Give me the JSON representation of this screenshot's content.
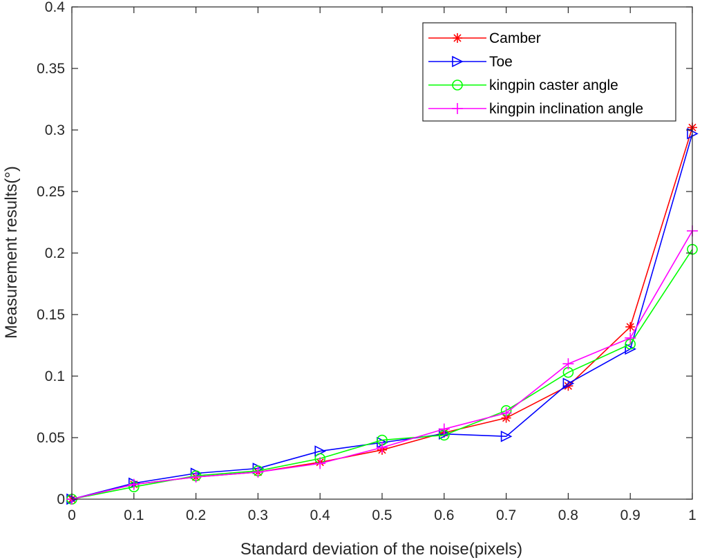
{
  "chart_data": {
    "type": "line",
    "title": "",
    "xlabel": "Standard deviation of the noise(pixels)",
    "ylabel": "Measurement results(°)",
    "xlim": [
      0,
      1
    ],
    "ylim": [
      0,
      0.4
    ],
    "xticks": [
      0,
      0.1,
      0.2,
      0.3,
      0.4,
      0.5,
      0.6,
      0.7,
      0.8,
      0.9,
      1
    ],
    "xtick_labels": [
      "0",
      "0.1",
      "0.2",
      "0.3",
      "0.4",
      "0.5",
      "0.6",
      "0.7",
      "0.8",
      "0.9",
      "1"
    ],
    "yticks": [
      0,
      0.05,
      0.1,
      0.15,
      0.2,
      0.25,
      0.3,
      0.35,
      0.4
    ],
    "ytick_labels": [
      "0",
      "0.05",
      "0.1",
      "0.15",
      "0.2",
      "0.25",
      "0.3",
      "0.35",
      "0.4"
    ],
    "grid": false,
    "legend_position": "top-right",
    "x": [
      0,
      0.1,
      0.2,
      0.3,
      0.4,
      0.5,
      0.6,
      0.7,
      0.8,
      0.9,
      1
    ],
    "series": [
      {
        "name": "Camber",
        "color": "#ff0000",
        "marker": "asterisk",
        "values": [
          0,
          0.012,
          0.018,
          0.022,
          0.03,
          0.04,
          0.054,
          0.066,
          0.092,
          0.14,
          0.302
        ]
      },
      {
        "name": "Toe",
        "color": "#0000ff",
        "marker": "triangle-right",
        "values": [
          0,
          0.013,
          0.021,
          0.025,
          0.039,
          0.046,
          0.053,
          0.051,
          0.094,
          0.122,
          0.297
        ]
      },
      {
        "name": "kingpin caster angle",
        "color": "#00ff00",
        "marker": "circle",
        "values": [
          0,
          0.01,
          0.019,
          0.023,
          0.033,
          0.048,
          0.052,
          0.072,
          0.103,
          0.126,
          0.203
        ]
      },
      {
        "name": "kingpin inclination angle",
        "color": "#ff00ff",
        "marker": "plus",
        "values": [
          0,
          0.012,
          0.018,
          0.022,
          0.029,
          0.042,
          0.057,
          0.07,
          0.11,
          0.131,
          0.218
        ]
      }
    ]
  }
}
